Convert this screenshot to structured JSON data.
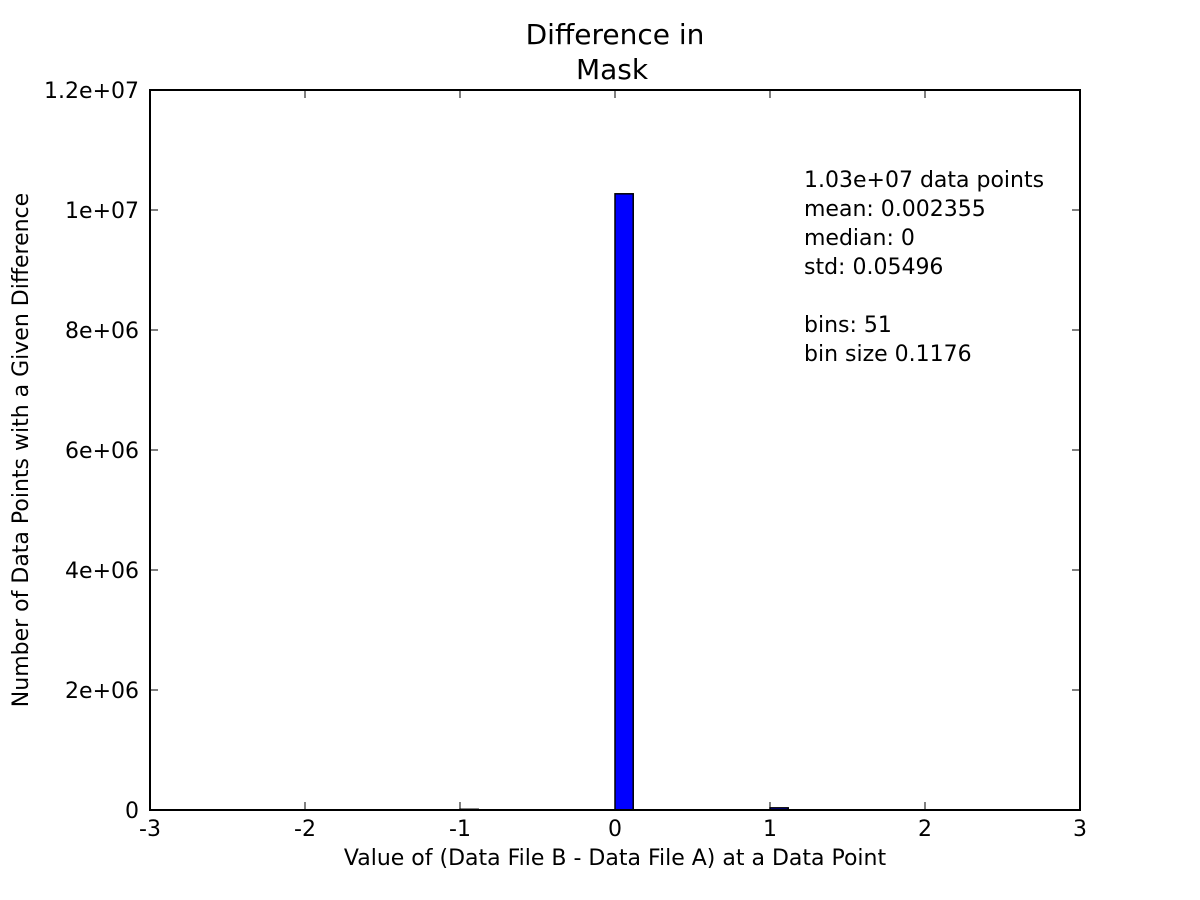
{
  "chart_data": {
    "type": "bar",
    "title_line1": "Difference in",
    "title_line2": "Mask",
    "xlabel": "Value of (Data File B - Data File A) at a Data Point",
    "ylabel": "Number of Data Points with a Given Difference",
    "xlim": [
      -3,
      3
    ],
    "ylim": [
      0,
      12000000
    ],
    "xticks": [
      -3,
      -2,
      -1,
      0,
      1,
      2,
      3
    ],
    "xtick_labels": [
      "-3",
      "-2",
      "-1",
      "0",
      "1",
      "2",
      "3"
    ],
    "yticks": [
      0,
      2000000,
      4000000,
      6000000,
      8000000,
      10000000,
      12000000
    ],
    "ytick_labels": [
      "0",
      "2e+06",
      "4e+06",
      "6e+06",
      "8e+06",
      "1e+07",
      "1.2e+07"
    ],
    "bars": [
      {
        "x0": -1.0,
        "x1": -0.8824,
        "value": 12000
      },
      {
        "x0": 0.0,
        "x1": 0.1176,
        "value": 10270000
      },
      {
        "x0": 1.0,
        "x1": 1.1176,
        "value": 36000
      }
    ],
    "bar_color": "#0000ff",
    "annotations": [
      "1.03e+07 data points",
      "mean: 0.002355",
      "median: 0",
      "std: 0.05496",
      "",
      "bins: 51",
      "bin size 0.1176"
    ],
    "grid": false,
    "legend": "none"
  }
}
